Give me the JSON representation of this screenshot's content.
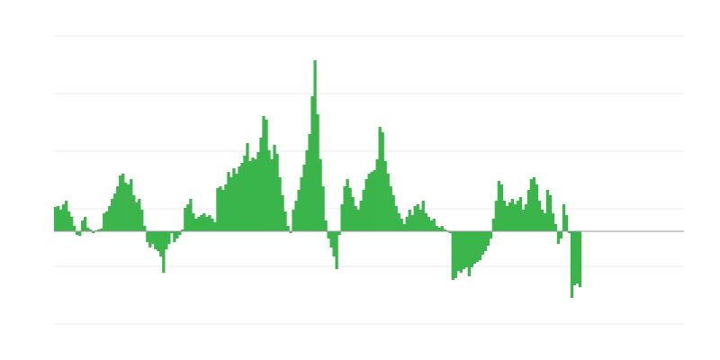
{
  "chart_data": {
    "type": "bar",
    "color": "#39b54a",
    "grid": true,
    "x": [
      0,
      1,
      2,
      3,
      4,
      5,
      6,
      7,
      8,
      9,
      10,
      11,
      12,
      13,
      14,
      15,
      16,
      17,
      18,
      19,
      20,
      21,
      22,
      23,
      24,
      25,
      26,
      27,
      28,
      29,
      30,
      31,
      32,
      33,
      34,
      35,
      36,
      37,
      38,
      39,
      40,
      41,
      42,
      43,
      44,
      45,
      46,
      47,
      48,
      49,
      50,
      51,
      52,
      53,
      54,
      55,
      56,
      57,
      58,
      59,
      60,
      61,
      62,
      63,
      64,
      65,
      66,
      67,
      68,
      69,
      70,
      71,
      72,
      73,
      74,
      75,
      76,
      77,
      78,
      79,
      80,
      81,
      82,
      83,
      84,
      85,
      86,
      87,
      88,
      89,
      90,
      91,
      92,
      93,
      94,
      95,
      96,
      97,
      98,
      99,
      100,
      101,
      102,
      103,
      104,
      105,
      106,
      107,
      108,
      109,
      110,
      111,
      112,
      113,
      114,
      115,
      116,
      117,
      118,
      119,
      120,
      121,
      122,
      123,
      124,
      125,
      126,
      127,
      128,
      129,
      130,
      131,
      132,
      133,
      134,
      135,
      136,
      137,
      138,
      139,
      140,
      141,
      142,
      143,
      144,
      145,
      146,
      147,
      148,
      149,
      150,
      151,
      152,
      153,
      154,
      155,
      156,
      157,
      158,
      159,
      160,
      161,
      162,
      163,
      164,
      165,
      166,
      167,
      168,
      169,
      170,
      171,
      172,
      173,
      174,
      175,
      176,
      177,
      178,
      179,
      180,
      181,
      182,
      183,
      184,
      185,
      186,
      187,
      188,
      189,
      190,
      191,
      192,
      193,
      194
    ],
    "values": [
      27,
      28,
      24,
      30,
      34,
      22,
      16,
      6,
      -4,
      -5,
      12,
      16,
      4,
      2,
      -2,
      1,
      2,
      3,
      20,
      22,
      28,
      36,
      42,
      50,
      62,
      64,
      54,
      52,
      58,
      40,
      32,
      36,
      24,
      6,
      -12,
      -18,
      -14,
      -20,
      -22,
      -28,
      -46,
      -20,
      -14,
      -2,
      -12,
      -8,
      -4,
      2,
      26,
      30,
      36,
      20,
      14,
      16,
      18,
      20,
      16,
      18,
      14,
      10,
      48,
      50,
      46,
      52,
      66,
      60,
      70,
      64,
      72,
      76,
      84,
      98,
      78,
      82,
      80,
      88,
      104,
      128,
      124,
      90,
      80,
      96,
      86,
      60,
      40,
      22,
      6,
      -2,
      24,
      34,
      46,
      60,
      74,
      90,
      108,
      150,
      190,
      130,
      80,
      50,
      12,
      -8,
      -18,
      -28,
      -42,
      -4,
      30,
      50,
      58,
      48,
      38,
      28,
      24,
      34,
      46,
      58,
      64,
      66,
      68,
      80,
      116,
      110,
      78,
      64,
      50,
      40,
      28,
      20,
      14,
      8,
      16,
      24,
      18,
      28,
      30,
      24,
      34,
      20,
      16,
      12,
      14,
      6,
      4,
      6,
      2,
      1,
      -2,
      -54,
      -52,
      -44,
      -46,
      -42,
      -40,
      -50,
      -40,
      -36,
      -34,
      -32,
      -26,
      -22,
      -16,
      -8,
      14,
      34,
      56,
      52,
      34,
      28,
      32,
      36,
      30,
      34,
      38,
      24,
      30,
      46,
      58,
      60,
      52,
      34,
      24,
      20,
      46,
      40,
      20,
      8,
      -14,
      -8,
      30,
      18,
      -2,
      -74,
      -60,
      -58,
      -62
    ],
    "xlim": [
      0,
      233
    ],
    "ylim": [
      -103,
      217
    ],
    "yticks": [
      -103,
      -39,
      25,
      89,
      153,
      217
    ]
  }
}
